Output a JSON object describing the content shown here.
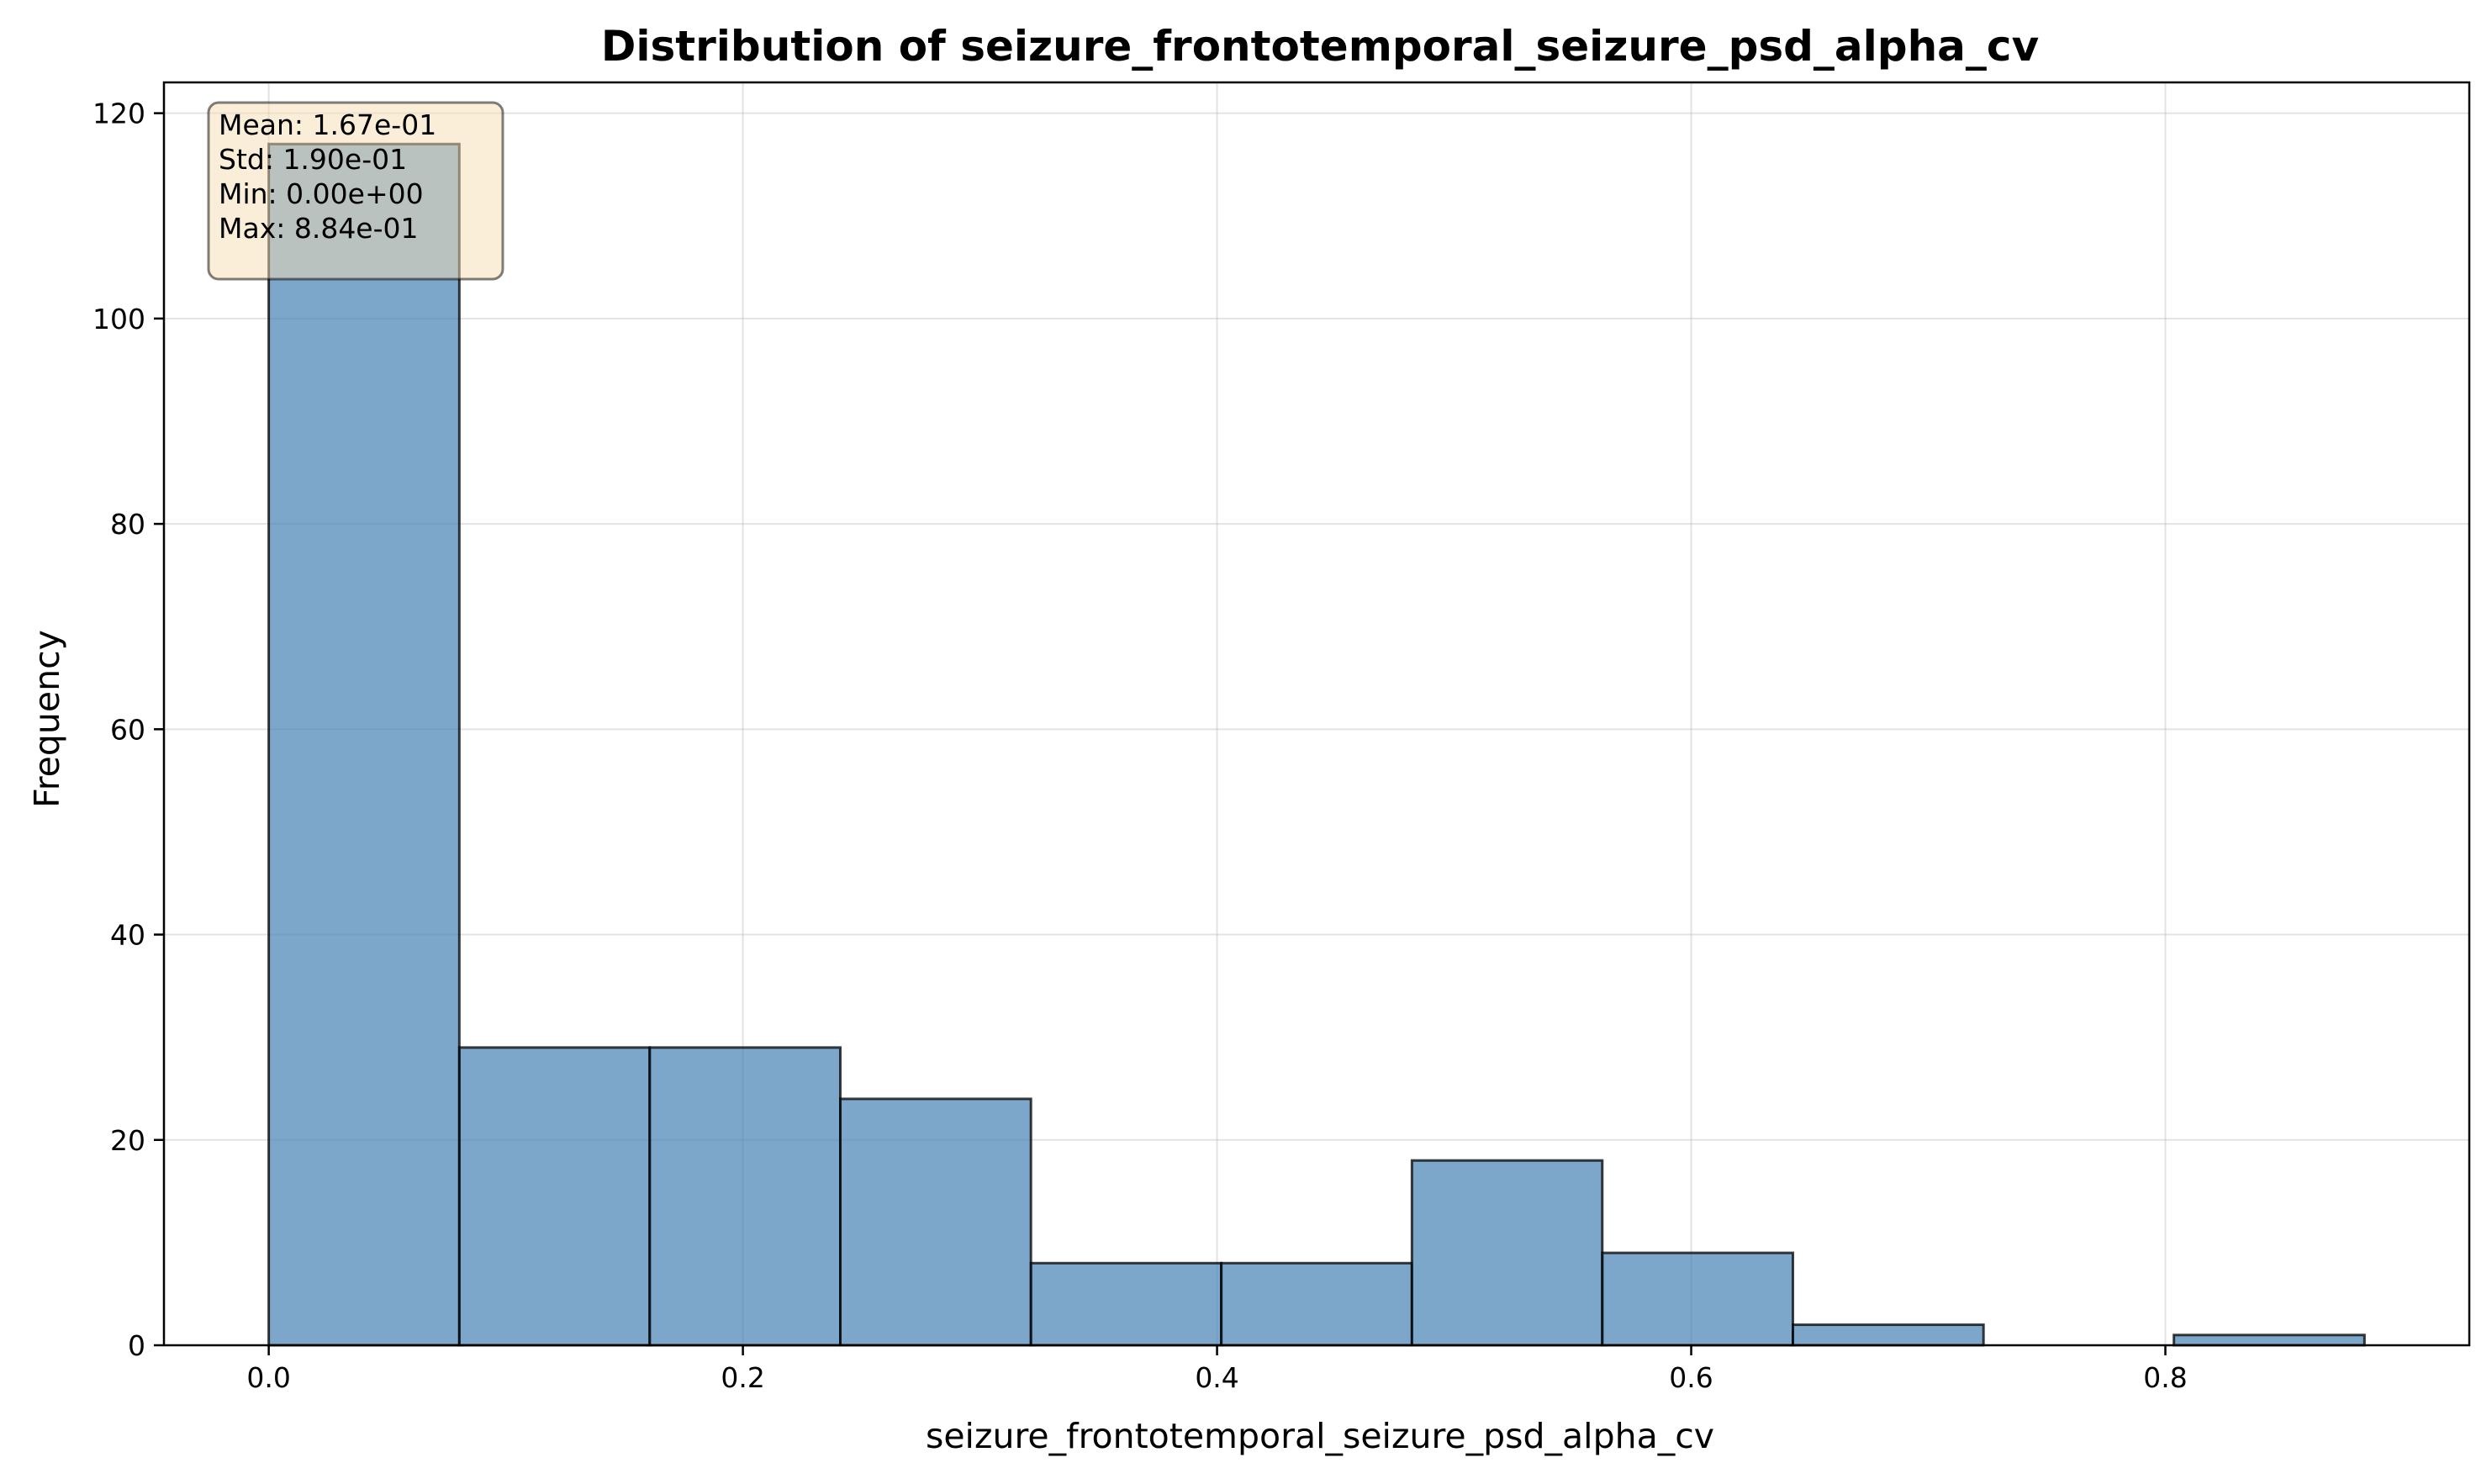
{
  "chart_data": {
    "type": "bar",
    "title": "Distribution of seizure_frontotemporal_seizure_psd_alpha_cv",
    "xlabel": "seizure_frontotemporal_seizure_psd_alpha_cv",
    "ylabel": "Frequency",
    "bin_edges": [
      0.0,
      0.0804,
      0.1607,
      0.2411,
      0.3215,
      0.4018,
      0.4822,
      0.5625,
      0.6429,
      0.7233,
      0.8036,
      0.884
    ],
    "values": [
      117,
      29,
      29,
      24,
      8,
      8,
      18,
      9,
      2,
      0,
      1
    ],
    "xlim": [
      -0.0442,
      0.9282
    ],
    "ylim": [
      0,
      123
    ],
    "xticks": [
      0.0,
      0.2,
      0.4,
      0.6,
      0.8
    ],
    "xtick_labels": [
      "0.0",
      "0.2",
      "0.4",
      "0.6",
      "0.8"
    ],
    "yticks": [
      0,
      20,
      40,
      60,
      80,
      100,
      120
    ],
    "ytick_labels": [
      "0",
      "20",
      "40",
      "60",
      "80",
      "100",
      "120"
    ],
    "grid": true,
    "bar_color": "#4682b4",
    "stats_box": {
      "placement": "top-left",
      "lines": [
        "Mean: 1.67e-01",
        "Std: 1.90e-01",
        "Min: 0.00e+00",
        "Max: 8.84e-01"
      ],
      "background": "#f5deb3"
    }
  }
}
